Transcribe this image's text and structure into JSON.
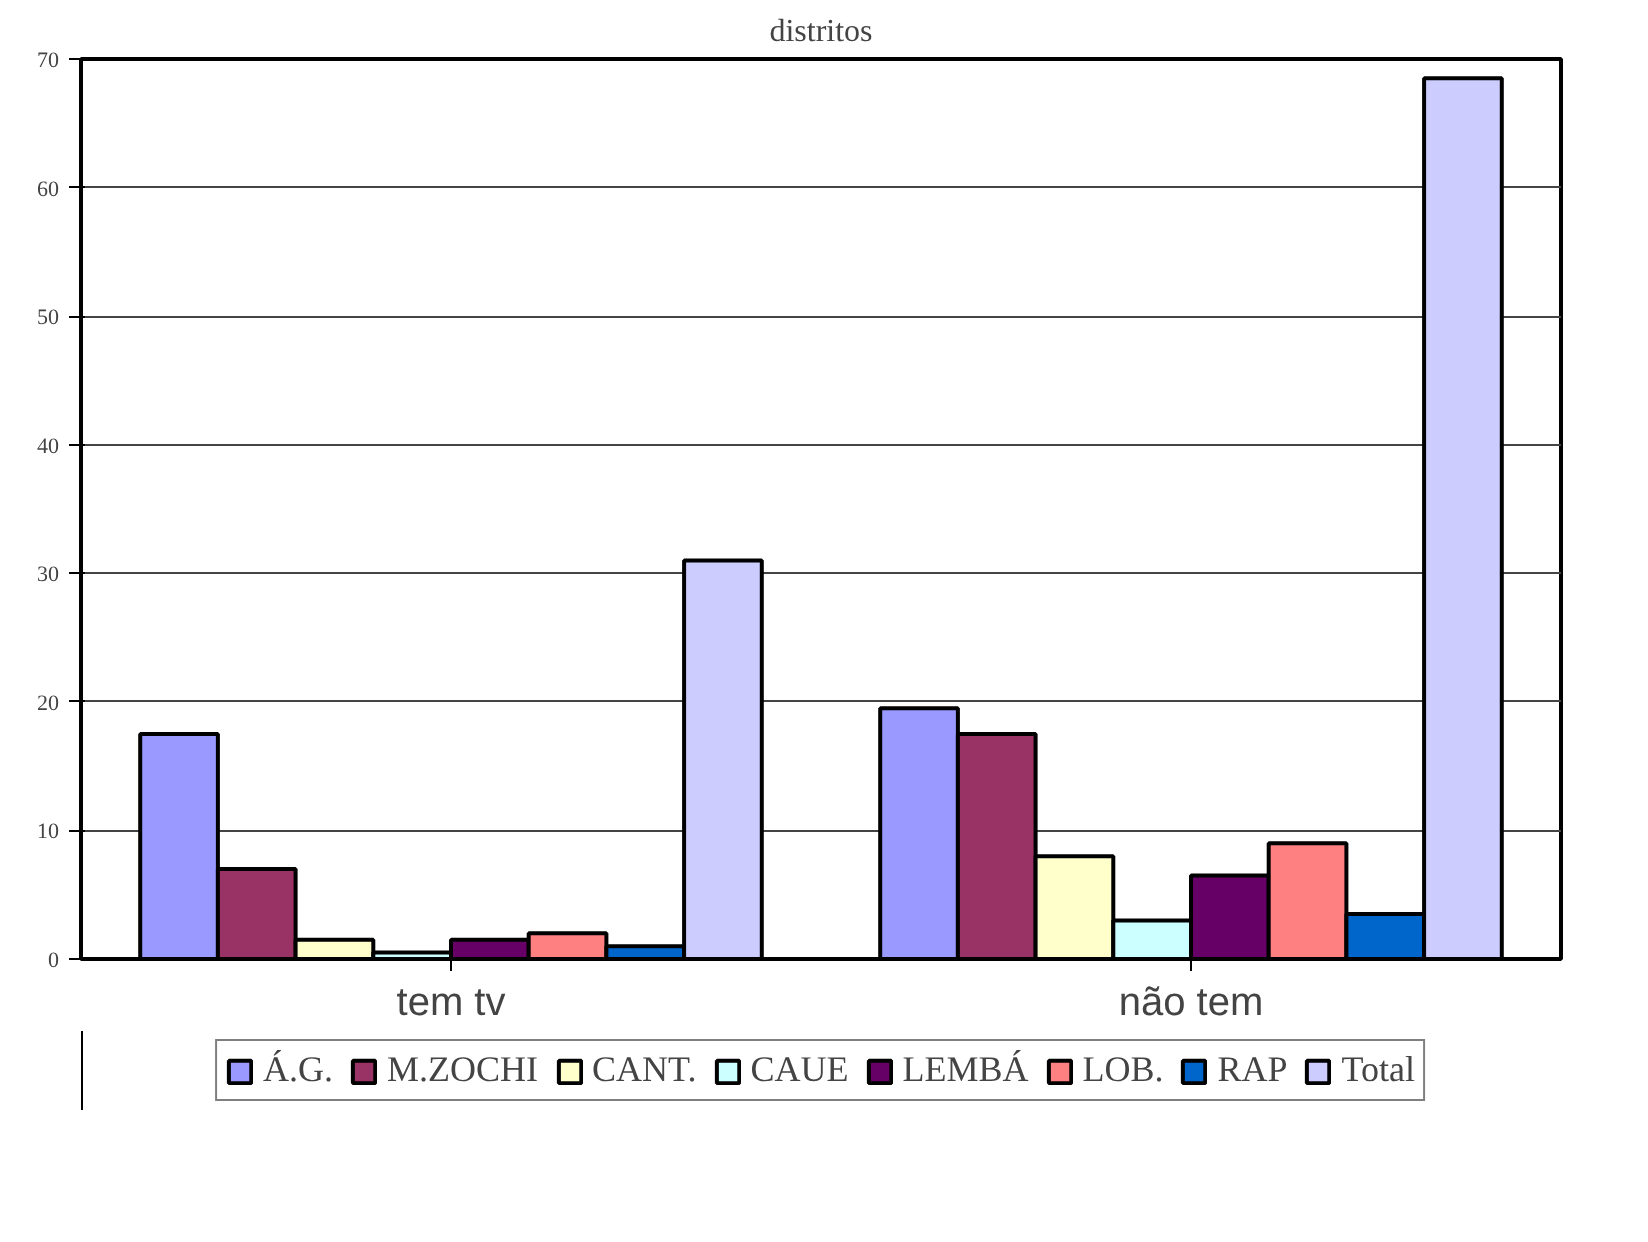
{
  "chart_data": {
    "type": "bar",
    "title": "distritos",
    "categories": [
      "tem tv",
      "não tem"
    ],
    "series": [
      {
        "name": "Á.G.",
        "color": "#9999ff",
        "values": [
          17.5,
          19.5
        ]
      },
      {
        "name": "M.ZOCHI",
        "color": "#993366",
        "values": [
          7,
          17.5
        ]
      },
      {
        "name": "CANT.",
        "color": "#ffffcc",
        "values": [
          1.5,
          8
        ]
      },
      {
        "name": "CAUE",
        "color": "#ccffff",
        "values": [
          0.5,
          3
        ]
      },
      {
        "name": "LEMBÁ",
        "color": "#660066",
        "values": [
          1.5,
          6.5
        ]
      },
      {
        "name": "LOB.",
        "color": "#ff8080",
        "values": [
          2,
          9
        ]
      },
      {
        "name": "RAP",
        "color": "#0066cc",
        "values": [
          1,
          3.5
        ]
      },
      {
        "name": "Total",
        "color": "#ccccff",
        "values": [
          31,
          68.5
        ]
      }
    ],
    "ylim": [
      0,
      70
    ],
    "yticks": [
      0,
      10,
      20,
      30,
      40,
      50,
      60,
      70
    ],
    "grid": "y",
    "legend": "bottom"
  }
}
